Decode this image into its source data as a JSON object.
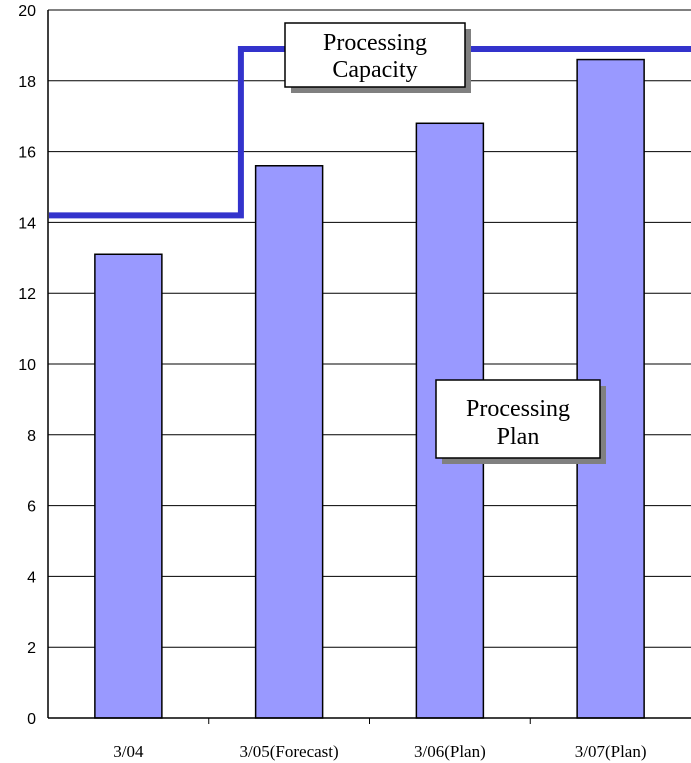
{
  "chart_data": {
    "type": "bar",
    "categories": [
      "3/04",
      "3/05(Forecast)",
      "3/06(Plan)",
      "3/07(Plan)"
    ],
    "series": [
      {
        "name": "Processing Plan",
        "type": "bar",
        "values": [
          13.1,
          15.6,
          16.8,
          18.6
        ],
        "color": "#9999ff"
      },
      {
        "name": "Processing Capacity",
        "type": "step-line",
        "values": [
          14.2,
          18.9,
          18.9,
          18.9
        ],
        "color": "#3333cc"
      }
    ],
    "title": "",
    "xlabel": "",
    "ylabel": "",
    "ylim": [
      0,
      20
    ],
    "yticks": [
      0,
      2,
      4,
      6,
      8,
      10,
      12,
      14,
      16,
      18,
      20
    ],
    "grid": true,
    "legend": "callout boxes"
  },
  "callouts": {
    "capacity": [
      "Processing",
      "Capacity"
    ],
    "plan": [
      "Processing",
      "Plan"
    ]
  }
}
